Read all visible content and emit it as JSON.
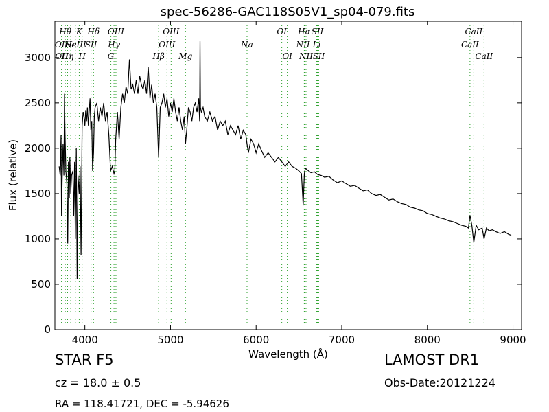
{
  "chart_data": {
    "type": "line",
    "title": "spec-56286-GAC118S05V1_sp04-079.fits",
    "xlabel": "Wavelength (Å)",
    "ylabel": "Flux (relative)",
    "xlim": [
      3650,
      9100
    ],
    "ylim": [
      0,
      3400
    ],
    "xticks": [
      4000,
      5000,
      6000,
      7000,
      8000,
      9000
    ],
    "yticks": [
      0,
      500,
      1000,
      1500,
      2000,
      2500,
      3000
    ],
    "grid": false,
    "line_color": "#000000",
    "series": [
      {
        "x": [
          3700,
          3712,
          3722,
          3728,
          3735,
          3745,
          3755,
          3762,
          3768,
          3778,
          3790,
          3800,
          3808,
          3818,
          3825,
          3835,
          3845,
          3860,
          3870,
          3880,
          3889,
          3900,
          3910,
          3920,
          3934,
          3945,
          3955,
          3968,
          3980,
          3990,
          4000,
          4010,
          4020,
          4030,
          4040,
          4050,
          4060,
          4070,
          4080,
          4090,
          4101,
          4110,
          4120,
          4140,
          4160,
          4180,
          4200,
          4220,
          4240,
          4260,
          4280,
          4300,
          4320,
          4340,
          4350,
          4360,
          4380,
          4400,
          4420,
          4440,
          4460,
          4480,
          4500,
          4520,
          4540,
          4560,
          4580,
          4600,
          4620,
          4640,
          4660,
          4680,
          4700,
          4720,
          4740,
          4760,
          4780,
          4800,
          4820,
          4840,
          4861,
          4880,
          4900,
          4920,
          4940,
          4960,
          4980,
          5000,
          5020,
          5040,
          5060,
          5080,
          5100,
          5120,
          5140,
          5160,
          5175,
          5190,
          5210,
          5230,
          5250,
          5270,
          5290,
          5310,
          5330,
          5340,
          5345,
          5350,
          5360,
          5380,
          5400,
          5430,
          5460,
          5490,
          5520,
          5550,
          5580,
          5610,
          5640,
          5670,
          5700,
          5730,
          5760,
          5790,
          5820,
          5850,
          5880,
          5893,
          5910,
          5940,
          5970,
          6000,
          6030,
          6060,
          6100,
          6140,
          6180,
          6220,
          6260,
          6300,
          6340,
          6380,
          6420,
          6460,
          6500,
          6530,
          6550,
          6563,
          6575,
          6600,
          6640,
          6680,
          6720,
          6760,
          6800,
          6850,
          6900,
          6950,
          7000,
          7050,
          7100,
          7150,
          7200,
          7250,
          7300,
          7350,
          7400,
          7450,
          7500,
          7550,
          7600,
          7650,
          7700,
          7750,
          7800,
          7850,
          7900,
          7950,
          8000,
          8050,
          8100,
          8150,
          8200,
          8250,
          8300,
          8350,
          8400,
          8450,
          8480,
          8498,
          8520,
          8542,
          8570,
          8600,
          8640,
          8662,
          8690,
          8720,
          8760,
          8800,
          8850,
          8900,
          8950,
          8980
        ],
        "y": [
          1800,
          1700,
          2150,
          1250,
          1650,
          2050,
          1700,
          2600,
          2200,
          1750,
          1600,
          950,
          1850,
          1450,
          1900,
          1500,
          1700,
          1750,
          1250,
          1850,
          1000,
          2000,
          560,
          1700,
          1500,
          1800,
          820,
          2250,
          2400,
          2350,
          2250,
          2420,
          2300,
          2450,
          2250,
          2400,
          2550,
          2200,
          2300,
          1750,
          1950,
          2350,
          2450,
          2500,
          2300,
          2450,
          2350,
          2500,
          2300,
          2400,
          2150,
          1750,
          1800,
          1720,
          1750,
          2100,
          2400,
          2100,
          2450,
          2600,
          2500,
          2680,
          2600,
          2980,
          2650,
          2700,
          2600,
          2750,
          2600,
          2800,
          2700,
          2650,
          2750,
          2600,
          2900,
          2550,
          2700,
          2500,
          2600,
          2450,
          1900,
          2450,
          2500,
          2600,
          2450,
          2550,
          2350,
          2500,
          2400,
          2550,
          2400,
          2300,
          2450,
          2300,
          2200,
          2350,
          2050,
          2200,
          2450,
          2400,
          2300,
          2450,
          2500,
          2400,
          2550,
          2300,
          3180,
          2450,
          2400,
          2450,
          2350,
          2300,
          2400,
          2300,
          2350,
          2200,
          2300,
          2250,
          2300,
          2150,
          2250,
          2200,
          2150,
          2250,
          2100,
          2200,
          2150,
          2050,
          1950,
          2100,
          2050,
          1950,
          2050,
          1980,
          1900,
          1950,
          1900,
          1850,
          1900,
          1850,
          1800,
          1850,
          1800,
          1780,
          1750,
          1720,
          1370,
          1720,
          1780,
          1760,
          1730,
          1740,
          1710,
          1700,
          1680,
          1690,
          1650,
          1620,
          1640,
          1610,
          1580,
          1590,
          1560,
          1530,
          1540,
          1500,
          1480,
          1490,
          1460,
          1430,
          1440,
          1410,
          1390,
          1380,
          1350,
          1340,
          1320,
          1310,
          1280,
          1270,
          1250,
          1230,
          1220,
          1200,
          1190,
          1170,
          1150,
          1140,
          1120,
          1260,
          1150,
          960,
          1150,
          1100,
          1120,
          1000,
          1120,
          1090,
          1100,
          1080,
          1060,
          1080,
          1050,
          1040
        ]
      }
    ],
    "lines": [
      {
        "group": 1,
        "wl": 3727,
        "label": "OII",
        "row": 2
      },
      {
        "group": 1,
        "wl": 3730,
        "label": "OII",
        "row": 3
      },
      {
        "group": 1,
        "wl": 3771,
        "label": "Hθ",
        "row": 1
      },
      {
        "group": 1,
        "wl": 3798,
        "label": "Hη",
        "row": 3
      },
      {
        "group": 1,
        "wl": 3835,
        "label": "Hε",
        "row": 2
      },
      {
        "group": 1,
        "wl": 3889,
        "label": "NeIII",
        "row": 2
      },
      {
        "group": 1,
        "wl": 3934,
        "label": "K",
        "row": 1
      },
      {
        "group": 1,
        "wl": 3968,
        "label": "H",
        "row": 3
      },
      {
        "group": 1,
        "wl": 4072,
        "label": "SII",
        "row": 2
      },
      {
        "group": 1,
        "wl": 4101,
        "label": "Hδ",
        "row": 1
      },
      {
        "group": 1,
        "wl": 4304,
        "label": "G",
        "row": 3
      },
      {
        "group": 1,
        "wl": 4340,
        "label": "Hγ",
        "row": 2
      },
      {
        "group": 1,
        "wl": 4363,
        "label": "OIII",
        "row": 1
      },
      {
        "group": 1,
        "wl": 4861,
        "label": "Hβ",
        "row": 3
      },
      {
        "group": 1,
        "wl": 4959,
        "label": "OIII",
        "row": 2
      },
      {
        "group": 1,
        "wl": 5007,
        "label": "OIII",
        "row": 1
      },
      {
        "group": 1,
        "wl": 5175,
        "label": "Mg",
        "row": 3
      },
      {
        "group": 1,
        "wl": 5894,
        "label": "Na",
        "row": 2
      },
      {
        "group": 1,
        "wl": 6300,
        "label": "OI",
        "row": 1
      },
      {
        "group": 1,
        "wl": 6364,
        "label": "OI",
        "row": 3
      },
      {
        "group": 1,
        "wl": 6548,
        "label": "NII",
        "row": 2
      },
      {
        "group": 1,
        "wl": 6563,
        "label": "Hα",
        "row": 1
      },
      {
        "group": 1,
        "wl": 6583,
        "label": "NII",
        "row": 3
      },
      {
        "group": 1,
        "wl": 6708,
        "label": "Li",
        "row": 2
      },
      {
        "group": 1,
        "wl": 6716,
        "label": "SII",
        "row": 1
      },
      {
        "group": 1,
        "wl": 6731,
        "label": "SII",
        "row": 3
      },
      {
        "group": 1,
        "wl": 8498,
        "label": "CaII",
        "row": 2
      },
      {
        "group": 1,
        "wl": 8542,
        "label": "CaII",
        "row": 1
      },
      {
        "group": 1,
        "wl": 8662,
        "label": "CaII",
        "row": 3
      }
    ]
  },
  "info": {
    "object_class": "STAR   F5",
    "survey": "LAMOST DR1",
    "redshift": "cz = 18.0  ± 0.5",
    "obs_date": "Obs-Date:20121224",
    "coordinates": "RA = 118.41721, DEC = -5.94626"
  }
}
